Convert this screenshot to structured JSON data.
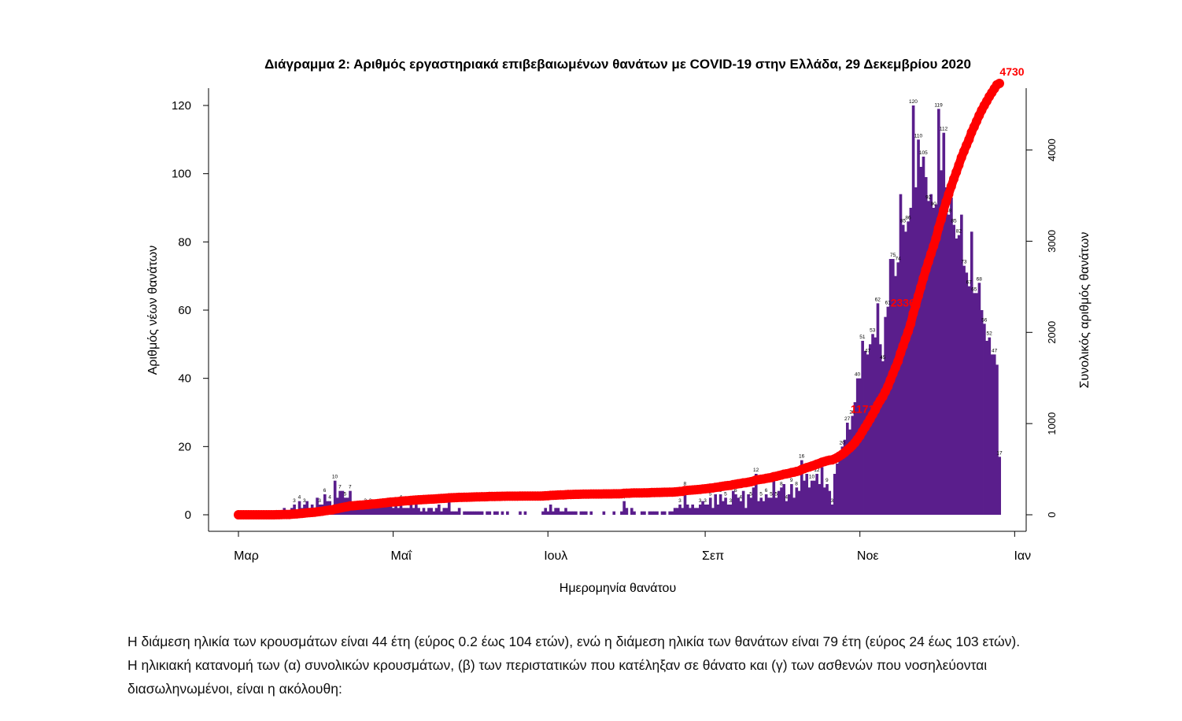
{
  "chart_data": {
    "type": "bar+line",
    "title": "Διάγραμμα 2: Αριθμός εργαστηριακά επιβεβαιωμένων θανάτων με COVID-19 στην Ελλάδα, 29 Δεκεμβρίου 2020",
    "xlabel": "Ημερομηνία θανάτου",
    "ylabel": "Αριθμός νέων θανάτων",
    "y2label": "Συνολικός αριθμός θανάτων",
    "x_ticks": [
      "Μαρ",
      "Μαΐ",
      "Ιουλ",
      "Σεπ",
      "Νοε",
      "Ιαν"
    ],
    "x_tick_days": [
      0,
      61,
      122,
      184,
      245,
      306
    ],
    "ylim": [
      0,
      120
    ],
    "y_ticks": [
      0,
      20,
      40,
      60,
      80,
      100,
      120
    ],
    "y2lim": [
      0,
      4730
    ],
    "y2_ticks": [
      0,
      1000,
      2000,
      3000,
      4000
    ],
    "start_date": "2020-03-01",
    "bar_color": "#5a1e8c",
    "line_color": "#ff0000",
    "daily_deaths": [
      0,
      0,
      0,
      0,
      0,
      0,
      0,
      0,
      0,
      0,
      0,
      0,
      0,
      0,
      0,
      1,
      0,
      1,
      2,
      0,
      0,
      2,
      3,
      1,
      4,
      2,
      3,
      4,
      2,
      3,
      2,
      5,
      3,
      3,
      6,
      4,
      4,
      2,
      10,
      5,
      7,
      7,
      5,
      5,
      7,
      2,
      2,
      3,
      2,
      2,
      3,
      3,
      3,
      3,
      2,
      3,
      3,
      4,
      3,
      4,
      3,
      2,
      3,
      2,
      4,
      2,
      2,
      2,
      3,
      2,
      3,
      2,
      1,
      2,
      1,
      2,
      2,
      1,
      2,
      3,
      1,
      2,
      2,
      4,
      1,
      1,
      1,
      2,
      0,
      1,
      1,
      1,
      1,
      1,
      1,
      1,
      1,
      0,
      1,
      1,
      0,
      1,
      1,
      0,
      1,
      0,
      1,
      0,
      0,
      0,
      0,
      1,
      0,
      1,
      0,
      0,
      0,
      0,
      0,
      0,
      1,
      2,
      1,
      3,
      1,
      2,
      2,
      1,
      1,
      2,
      1,
      1,
      1,
      1,
      0,
      1,
      1,
      1,
      0,
      1,
      0,
      0,
      0,
      0,
      1,
      0,
      0,
      0,
      1,
      0,
      0,
      1,
      4,
      2,
      0,
      2,
      1,
      0,
      0,
      1,
      1,
      0,
      1,
      1,
      1,
      1,
      0,
      1,
      1,
      0,
      1,
      1,
      2,
      2,
      3,
      2,
      8,
      3,
      2,
      3,
      2,
      2,
      3,
      4,
      3,
      3,
      5,
      2,
      6,
      3,
      6,
      4,
      5,
      3,
      3,
      7,
      6,
      5,
      4,
      7,
      2,
      6,
      5,
      8,
      12,
      4,
      5,
      4,
      6,
      5,
      5,
      10,
      5,
      7,
      8,
      9,
      4,
      6,
      9,
      5,
      8,
      7,
      16,
      10,
      12,
      8,
      10,
      10,
      12,
      9,
      14,
      8,
      9,
      7,
      3,
      12,
      15,
      18,
      20,
      22,
      27,
      25,
      29,
      33,
      40,
      40,
      51,
      48,
      47,
      50,
      53,
      52,
      62,
      50,
      45,
      58,
      61,
      75,
      75,
      70,
      74,
      94,
      85,
      83,
      86,
      90,
      120,
      96,
      110,
      102,
      105,
      99,
      92,
      94,
      90,
      91,
      119,
      101,
      112,
      96,
      88,
      93,
      85,
      81,
      82,
      88,
      73,
      71,
      67,
      83,
      65,
      65,
      68,
      60,
      56,
      51,
      52,
      47,
      47,
      44,
      17
    ]
  },
  "bar_labels": [
    "120",
    "119",
    "110",
    "112",
    "102",
    "99",
    "96",
    "94",
    "93",
    "93",
    "92",
    "90",
    "91",
    "88",
    "85",
    "88",
    "83",
    "82",
    "83",
    "81",
    "77",
    "75",
    "75",
    "73",
    "70",
    "71",
    "68",
    "65",
    "65",
    "62",
    "60",
    "56",
    "56",
    "55",
    "51",
    "51",
    "51",
    "47",
    "47",
    "48",
    "46",
    "44",
    "44",
    "50",
    "40",
    "33",
    "30",
    "29",
    "27",
    "25",
    "22",
    "20",
    "18",
    "17",
    "16",
    "14",
    "14",
    "12",
    "12",
    "10",
    "10",
    "9",
    "8",
    "8",
    "8",
    "8",
    "8",
    "7",
    "7",
    "7",
    "7",
    "6",
    "6",
    "6",
    "6",
    "5",
    "5",
    "5",
    "4",
    "4",
    "4",
    "4",
    "4",
    "4",
    "3",
    "3",
    "3",
    "3",
    "3",
    "3",
    "2",
    "2",
    "2",
    "2",
    "2",
    "2",
    "2",
    "1",
    "1",
    "1",
    "1",
    "0",
    "0",
    "0",
    "0"
  ],
  "cumulative_labels": [
    "1171",
    "2336",
    "4730"
  ],
  "paragraph": {
    "line1": "Η διάμεση ηλικία των κρουσμάτων είναι 44 έτη (εύρος 0.2 έως 104 ετών), ενώ η διάμεση ηλικία των θανάτων είναι 79 έτη (εύρος 24 έως 103 ετών).",
    "line2": "Η ηλικιακή κατανομή των (α) συνολικών κρουσμάτων, (β) των περιστατικών που κατέληξαν σε θάνατο και (γ) των ασθενών που νοσηλεύονται",
    "line3": "διασωληνωμένοι, είναι η ακόλουθη:"
  }
}
